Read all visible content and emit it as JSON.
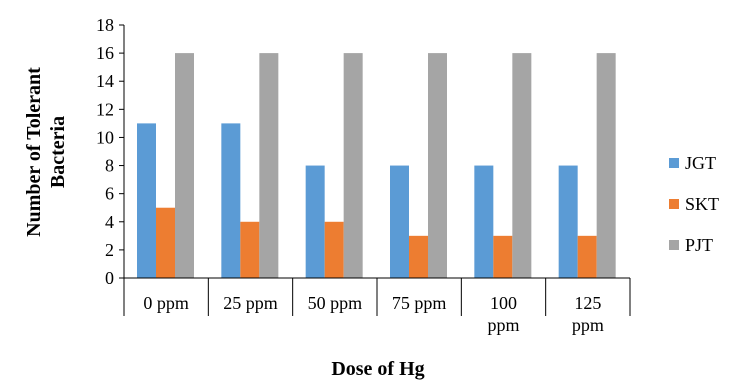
{
  "chart_data": {
    "type": "bar",
    "categories": [
      [
        "0 ppm"
      ],
      [
        "25 ppm"
      ],
      [
        "50 ppm"
      ],
      [
        "75 ppm"
      ],
      [
        "100",
        "ppm"
      ],
      [
        "125",
        "ppm"
      ]
    ],
    "series": [
      {
        "name": "JGT",
        "values": [
          11,
          11,
          8,
          8,
          8,
          8
        ],
        "color": "#5B9BD5"
      },
      {
        "name": "SKT",
        "values": [
          5,
          4,
          4,
          3,
          3,
          3
        ],
        "color": "#ED7D31"
      },
      {
        "name": "PJT",
        "values": [
          16,
          16,
          16,
          16,
          16,
          16
        ],
        "color": "#A5A5A5"
      }
    ],
    "xlabel": "Dose of Hg",
    "ylabel": [
      "Number of Tolerant",
      "Bacteria"
    ],
    "ylim": [
      0,
      18
    ],
    "yticks": [
      0,
      2,
      4,
      6,
      8,
      10,
      12,
      14,
      16,
      18
    ],
    "grid": false,
    "legend": "right"
  }
}
